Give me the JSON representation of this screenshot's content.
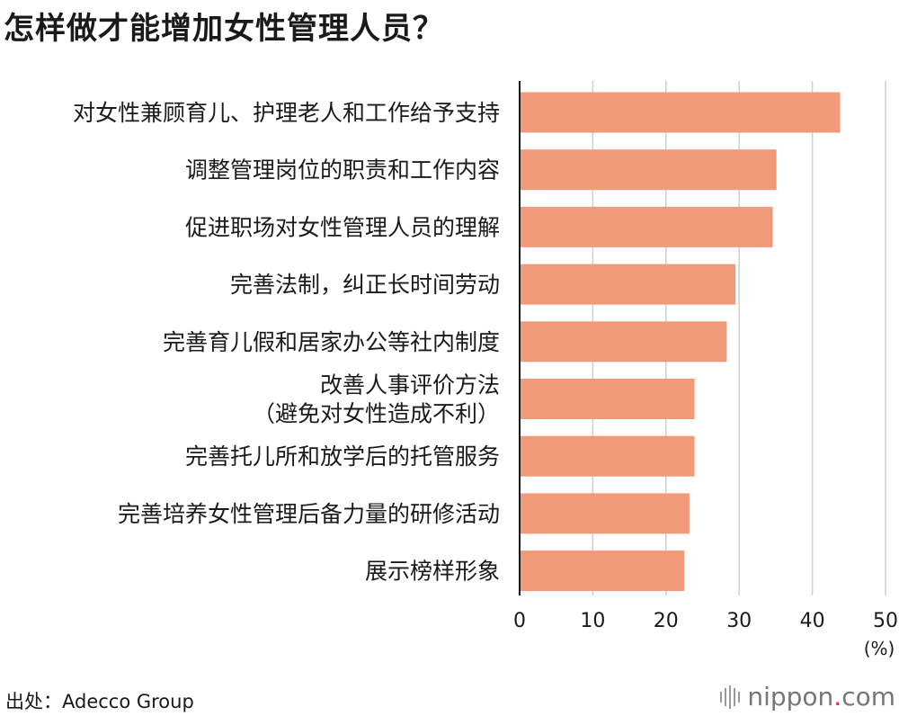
{
  "title": "怎样做才能增加女性管理人员？",
  "source": "出处：Adecco Group",
  "brand": {
    "prefix": "nippon",
    "dot": ".",
    "suffix": "com"
  },
  "chart_data": {
    "type": "bar",
    "orientation": "horizontal",
    "categories": [
      [
        "对女性兼顾育儿、护理老人和工作给予支持"
      ],
      [
        "调整管理岗位的职责和工作内容"
      ],
      [
        "促进职场对女性管理人员的理解"
      ],
      [
        "完善法制，纠正长时间劳动"
      ],
      [
        "完善育儿假和居家办公等社内制度"
      ],
      [
        "改善人事评价方法",
        "（避免对女性造成不利）"
      ],
      [
        "完善托儿所和放学后的托管服务"
      ],
      [
        "完善培养女性管理后备力量的研修活动"
      ],
      [
        "展示榜样形象"
      ]
    ],
    "values": [
      43.8,
      35.1,
      34.6,
      29.5,
      28.3,
      23.9,
      23.9,
      23.2,
      22.5
    ],
    "xlim": [
      0,
      50
    ],
    "xticks": [
      0,
      10,
      20,
      30,
      40,
      50
    ],
    "xunit": "(%)",
    "grid": true,
    "bar_color": "#f19a7a"
  }
}
